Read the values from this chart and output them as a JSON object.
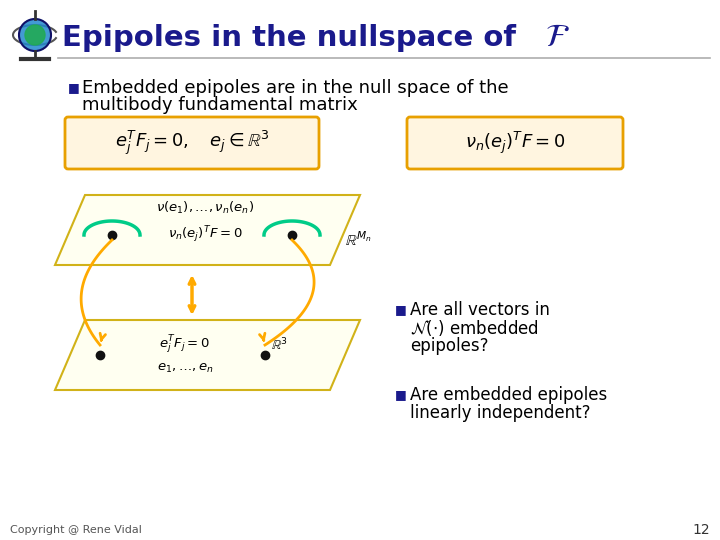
{
  "bg_color": "#ffffff",
  "title_text": "Epipoles in the nullspace of ",
  "title_color": "#1a1a8c",
  "title_fontsize": 21,
  "header_line_color": "#999999",
  "bullet_color": "#1a1a8c",
  "text_color": "#000000",
  "text_fontsize": 13,
  "box_edge_color": "#e8a000",
  "box_face_color": "#fff5e0",
  "plane_face_color": "#fffff0",
  "plane_edge_color": "#ccaa00",
  "arrow_color": "#ffaa00",
  "curve_color": "#00cc88",
  "dot_color": "#111111",
  "footer_text": "Copyright @ Rene Vidal",
  "page_num": "12"
}
